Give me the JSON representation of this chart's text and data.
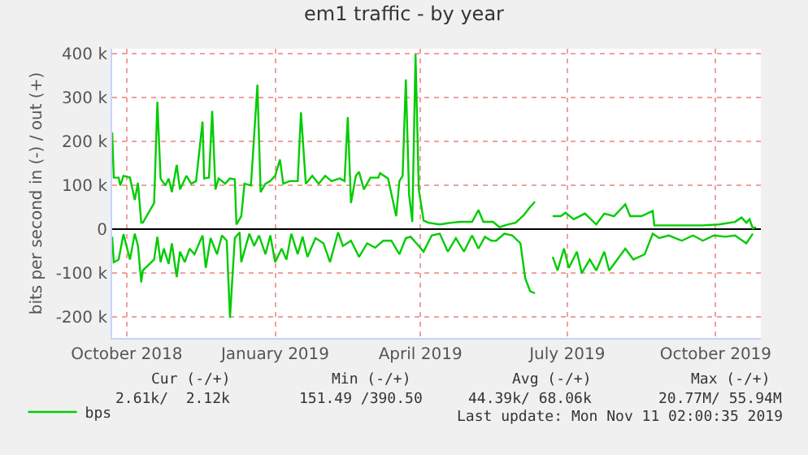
{
  "chart_data": {
    "type": "line",
    "title": "em1 traffic - by year",
    "ylabel": "bits per second in (-) / out (+)",
    "xlim": [
      "2018-09-22",
      "2019-10-29"
    ],
    "xticks": [
      {
        "value": "2018-10-01",
        "label": "October 2018"
      },
      {
        "value": "2019-01-01",
        "label": "January 2019"
      },
      {
        "value": "2019-04-01",
        "label": "April 2019"
      },
      {
        "value": "2019-07-01",
        "label": "July 2019"
      },
      {
        "value": "2019-10-01",
        "label": "October 2019"
      }
    ],
    "ylim": [
      -248000,
      412000
    ],
    "yticks": [
      {
        "value": -200000,
        "label": "-200 k"
      },
      {
        "value": -100000,
        "label": "-100 k"
      },
      0,
      {
        "value": 100000,
        "label": "100 k"
      },
      {
        "value": 200000,
        "label": "200 k"
      },
      {
        "value": 300000,
        "label": "300 k"
      },
      {
        "value": 400000,
        "label": "400 k"
      }
    ],
    "grid": true,
    "legend": "bottom left",
    "series": [
      {
        "name": "bps",
        "color": "#00cc00",
        "x": [
          "2018-09-22",
          "2018-09-23",
          "2018-09-26",
          "2018-09-27",
          "2018-09-29",
          "2018-10-03",
          "2018-10-06",
          "2018-10-08",
          "2018-10-10",
          "2018-10-11",
          "2018-10-18",
          "2018-10-20",
          "2018-10-22",
          "2018-10-25",
          "2018-10-27",
          "2018-10-29",
          "2018-11-01",
          "2018-11-03",
          "2018-11-07",
          "2018-11-10",
          "2018-11-13",
          "2018-11-17",
          "2018-11-18",
          "2018-11-21",
          "2018-11-23",
          "2018-11-25",
          "2018-11-27",
          "2018-12-01",
          "2018-12-04",
          "2018-12-07",
          "2018-12-08",
          "2018-12-11",
          "2018-12-13",
          "2018-12-17",
          "2018-12-21",
          "2018-12-23",
          "2018-12-26",
          "2018-12-29",
          "2019-01-01",
          "2019-01-04",
          "2019-01-06",
          "2019-01-10",
          "2019-01-15",
          "2019-01-17",
          "2019-01-20",
          "2019-01-24",
          "2019-01-28",
          "2019-02-01",
          "2019-02-05",
          "2019-02-10",
          "2019-02-13",
          "2019-02-15",
          "2019-02-17",
          "2019-02-20",
          "2019-02-22",
          "2019-02-25",
          "2019-03-01",
          "2019-03-06",
          "2019-03-07",
          "2019-03-12",
          "2019-03-17",
          "2019-03-19",
          "2019-03-21",
          "2019-03-23",
          "2019-03-25",
          "2019-03-27",
          "2019-03-29",
          "2019-03-31",
          "2019-04-03",
          "2019-04-06",
          "2019-04-13",
          "2019-04-20",
          "2019-04-26",
          "2019-05-03",
          "2019-05-07",
          "2019-05-10",
          "2019-05-16",
          "2019-05-20",
          "2019-05-25",
          "2019-05-30",
          "2019-06-04",
          "2019-06-08",
          "2019-06-11",
          "2019-06-20",
          "2019-06-22",
          "2019-06-27",
          "2019-06-30",
          "2019-07-05",
          "2019-07-12",
          "2019-07-19",
          "2019-07-24",
          "2019-07-30",
          "2019-08-06",
          "2019-08-09",
          "2019-08-16",
          "2019-08-23",
          "2019-08-24",
          "2019-08-31",
          "2019-09-10",
          "2019-09-23",
          "2019-10-03",
          "2019-10-13",
          "2019-10-17",
          "2019-10-20",
          "2019-10-22",
          "2019-10-24",
          "2019-10-26"
        ],
        "values": [
          221000,
          118000,
          118000,
          100000,
          122000,
          118000,
          67000,
          106000,
          15000,
          15000,
          60000,
          291000,
          116000,
          100000,
          116000,
          85000,
          147000,
          91000,
          122000,
          104000,
          110000,
          246000,
          116000,
          118000,
          270000,
          91000,
          116000,
          104000,
          116000,
          114000,
          11000,
          30000,
          104000,
          100000,
          330000,
          85000,
          104000,
          110000,
          122000,
          159000,
          104000,
          110000,
          110000,
          267000,
          104000,
          122000,
          104000,
          122000,
          110000,
          116000,
          110000,
          256000,
          60000,
          122000,
          131000,
          91000,
          118000,
          118000,
          128000,
          116000,
          30000,
          110000,
          122000,
          342000,
          79000,
          17000,
          400000,
          91000,
          20000,
          15000,
          11000,
          15000,
          17000,
          17000,
          44000,
          17000,
          17000,
          5000,
          11000,
          15000,
          32000,
          51000,
          63000,
          null,
          30000,
          30000,
          38000,
          23000,
          36000,
          11000,
          36000,
          30000,
          57000,
          30000,
          30000,
          42000,
          9000,
          9000,
          9000,
          9000,
          11000,
          17000,
          27000,
          15000,
          23000,
          2000,
          5000
        ]
      },
      {
        "color": "#00cc00",
        "x": [
          "2018-09-22",
          "2018-09-23",
          "2018-09-26",
          "2018-09-29",
          "2018-10-03",
          "2018-10-06",
          "2018-10-08",
          "2018-10-10",
          "2018-10-11",
          "2018-10-18",
          "2018-10-20",
          "2018-10-22",
          "2018-10-24",
          "2018-10-27",
          "2018-10-29",
          "2018-11-01",
          "2018-11-03",
          "2018-11-06",
          "2018-11-09",
          "2018-11-12",
          "2018-11-17",
          "2018-11-19",
          "2018-11-22",
          "2018-11-26",
          "2018-11-29",
          "2018-12-02",
          "2018-12-04",
          "2018-12-07",
          "2018-12-10",
          "2018-12-11",
          "2018-12-16",
          "2018-12-19",
          "2018-12-22",
          "2018-12-26",
          "2018-12-29",
          "2019-01-01",
          "2019-01-05",
          "2019-01-08",
          "2019-01-11",
          "2019-01-15",
          "2019-01-18",
          "2019-01-21",
          "2019-01-26",
          "2019-01-31",
          "2019-02-04",
          "2019-02-09",
          "2019-02-12",
          "2019-02-17",
          "2019-02-22",
          "2019-02-27",
          "2019-03-04",
          "2019-03-09",
          "2019-03-14",
          "2019-03-19",
          "2019-03-23",
          "2019-03-26",
          "2019-03-31",
          "2019-04-03",
          "2019-04-08",
          "2019-04-13",
          "2019-04-18",
          "2019-04-23",
          "2019-04-28",
          "2019-05-03",
          "2019-05-07",
          "2019-05-11",
          "2019-05-15",
          "2019-05-18",
          "2019-05-23",
          "2019-05-28",
          "2019-06-02",
          "2019-06-05",
          "2019-06-08",
          "2019-06-11",
          "2019-06-20",
          "2019-06-22",
          "2019-06-25",
          "2019-06-29",
          "2019-07-02",
          "2019-07-07",
          "2019-07-10",
          "2019-07-15",
          "2019-07-19",
          "2019-07-24",
          "2019-07-27",
          "2019-08-01",
          "2019-08-06",
          "2019-08-11",
          "2019-08-18",
          "2019-08-23",
          "2019-08-27",
          "2019-09-02",
          "2019-09-10",
          "2019-09-17",
          "2019-09-23",
          "2019-09-30",
          "2019-10-07",
          "2019-10-13",
          "2019-10-20",
          "2019-10-24"
        ],
        "values": [
          -17000,
          -75000,
          -69000,
          -11000,
          -69000,
          -10000,
          -38000,
          -121000,
          -94000,
          -69000,
          -17000,
          -75000,
          -44000,
          -79000,
          -32000,
          -109000,
          -51000,
          -75000,
          -44000,
          -57000,
          -14000,
          -88000,
          -20000,
          -57000,
          -14000,
          -26000,
          -202000,
          -20000,
          -7000,
          -75000,
          -10000,
          -38000,
          -14000,
          -57000,
          -14000,
          -75000,
          -44000,
          -69000,
          -10000,
          -57000,
          -17000,
          -63000,
          -20000,
          -32000,
          -75000,
          -7000,
          -38000,
          -26000,
          -63000,
          -32000,
          -42000,
          -26000,
          -26000,
          -57000,
          -20000,
          -17000,
          -38000,
          -51000,
          -14000,
          -10000,
          -51000,
          -20000,
          -51000,
          -14000,
          -44000,
          -17000,
          -26000,
          -26000,
          -10000,
          -14000,
          -32000,
          -112000,
          -141000,
          -146000,
          null,
          -63000,
          -94000,
          -44000,
          -88000,
          -51000,
          -100000,
          -69000,
          -94000,
          -51000,
          -94000,
          -69000,
          -44000,
          -69000,
          -57000,
          -10000,
          -20000,
          -14000,
          -26000,
          -14000,
          -26000,
          -14000,
          -17000,
          -14000,
          -32000,
          -10000
        ]
      }
    ],
    "annotations": [
      "Cur (-/+)",
      "Min (-/+)",
      "Avg (-/+)",
      "Max (-/+)",
      "2.61k/  2.12k",
      "151.49 /390.50",
      "44.39k/ 68.06k",
      "20.77M/ 55.94M",
      "Last update: Mon Nov 11 02:00:35 2019"
    ]
  }
}
